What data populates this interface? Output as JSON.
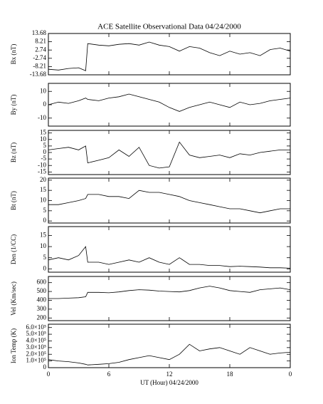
{
  "chart_data": [
    {
      "type": "line",
      "title": "ACE Satellite Observational Data   04/24/2000",
      "ylabel": "Bx (nT)",
      "xlim": [
        0,
        24
      ],
      "ylim": [
        -13.68,
        13.68
      ],
      "yticks": [
        13.68,
        8.21,
        2.74,
        -2.74,
        -8.21,
        -13.68
      ],
      "x": [
        0,
        1,
        2,
        3,
        3.7,
        3.9,
        5,
        6,
        7,
        8,
        9,
        10,
        11,
        12,
        13,
        14,
        15,
        16,
        17,
        18,
        19,
        20,
        21,
        22,
        23,
        24
      ],
      "series": [
        {
          "name": "Bx",
          "color": "#000000",
          "values": [
            -10,
            -10.5,
            -9.5,
            -9,
            -11,
            7,
            6,
            5.5,
            6.5,
            7,
            6,
            8,
            6,
            5,
            2,
            5,
            4,
            1,
            -1,
            2,
            0,
            1,
            -1,
            3,
            4,
            2
          ]
        }
      ]
    },
    {
      "type": "line",
      "ylabel": "By (nT)",
      "xlim": [
        0,
        24
      ],
      "ylim": [
        -16,
        16
      ],
      "yticks": [
        10,
        0,
        -10
      ],
      "x": [
        0,
        1,
        2,
        3,
        3.7,
        3.9,
        5,
        6,
        7,
        8,
        9,
        10,
        11,
        12,
        13,
        14,
        15,
        16,
        17,
        18,
        19,
        20,
        21,
        22,
        23,
        24
      ],
      "series": [
        {
          "name": "By",
          "color": "#000000",
          "values": [
            0,
            2,
            1,
            3,
            5,
            4,
            3,
            5,
            6,
            8,
            6,
            4,
            2,
            -2,
            -5,
            -2,
            0,
            2,
            0,
            -2,
            2,
            0,
            1,
            3,
            4,
            5
          ]
        }
      ]
    },
    {
      "type": "line",
      "ylabel": "Bz (nT)",
      "xlim": [
        0,
        24
      ],
      "ylim": [
        -17,
        17
      ],
      "yticks": [
        15,
        10,
        5,
        0,
        -5,
        -10,
        -15
      ],
      "x": [
        0,
        1,
        2,
        3,
        3.7,
        3.9,
        5,
        6,
        7,
        8,
        9,
        10,
        11,
        12,
        13,
        14,
        15,
        16,
        17,
        18,
        19,
        20,
        21,
        22,
        23,
        24
      ],
      "series": [
        {
          "name": "Bz",
          "color": "#000000",
          "values": [
            2,
            3,
            4,
            2,
            5,
            -8,
            -6,
            -4,
            2,
            -3,
            4,
            -10,
            -12,
            -11,
            8,
            -2,
            -4,
            -3,
            -2,
            -4,
            -1,
            -2,
            0,
            1,
            2,
            2
          ]
        }
      ]
    },
    {
      "type": "line",
      "ylabel": "Bt (nT)",
      "xlim": [
        0,
        24
      ],
      "ylim": [
        -1,
        21
      ],
      "yticks": [
        0,
        5,
        10,
        15,
        20
      ],
      "x": [
        0,
        1,
        2,
        3,
        3.7,
        3.9,
        5,
        6,
        7,
        8,
        9,
        10,
        11,
        12,
        13,
        14,
        15,
        16,
        17,
        18,
        19,
        20,
        21,
        22,
        23,
        24
      ],
      "series": [
        {
          "name": "Bt",
          "color": "#000000",
          "values": [
            8,
            8,
            9,
            10,
            11,
            13,
            13,
            12,
            12,
            11,
            15,
            14,
            14,
            13,
            12,
            10,
            9,
            8,
            7,
            6,
            6,
            5,
            4,
            5,
            6,
            6
          ]
        }
      ]
    },
    {
      "type": "line",
      "ylabel": "Den (1/CC)",
      "xlim": [
        0,
        24
      ],
      "ylim": [
        -1.5,
        19
      ],
      "yticks": [
        0,
        5,
        10,
        15
      ],
      "x": [
        0,
        1,
        2,
        3,
        3.7,
        3.9,
        5,
        6,
        7,
        8,
        9,
        10,
        11,
        12,
        13,
        14,
        15,
        16,
        17,
        18,
        19,
        20,
        21,
        22,
        23,
        24
      ],
      "series": [
        {
          "name": "Den",
          "color": "#000000",
          "values": [
            4,
            5,
            4,
            6,
            10,
            3,
            3,
            2,
            3,
            4,
            3,
            5,
            3,
            2,
            5,
            2,
            2,
            1.5,
            1.5,
            1,
            1.2,
            1,
            0.8,
            0.5,
            0.5,
            0.3
          ]
        }
      ]
    },
    {
      "type": "line",
      "ylabel": "Vel (Km/sec)",
      "xlim": [
        0,
        24
      ],
      "ylim": [
        170,
        670
      ],
      "yticks": [
        200,
        300,
        400,
        500,
        600
      ],
      "x": [
        0,
        1,
        2,
        3,
        3.7,
        3.9,
        5,
        6,
        7,
        8,
        9,
        10,
        11,
        12,
        13,
        14,
        15,
        16,
        17,
        18,
        19,
        20,
        21,
        22,
        23,
        24
      ],
      "series": [
        {
          "name": "Vel",
          "color": "#000000",
          "values": [
            420,
            420,
            425,
            430,
            440,
            490,
            490,
            485,
            495,
            510,
            520,
            515,
            505,
            500,
            495,
            510,
            540,
            560,
            540,
            510,
            500,
            490,
            520,
            530,
            540,
            520
          ]
        }
      ]
    },
    {
      "type": "line",
      "ylabel": "Ion Temp (K)",
      "xlabel": "UT (Hour)  04/24/2000",
      "xlim": [
        0,
        24
      ],
      "ylim": [
        0,
        650000
      ],
      "xticks": [
        0,
        6,
        12,
        18,
        {
          "value": 24,
          "label": "0"
        }
      ],
      "yticks": [
        0,
        {
          "value": 100000,
          "label": "1.0×10⁵"
        },
        {
          "value": 200000,
          "label": "2.0×10⁵"
        },
        {
          "value": 300000,
          "label": "3.0×10⁵"
        },
        {
          "value": 400000,
          "label": "4.0×10⁵"
        },
        {
          "value": 500000,
          "label": "5.0×10⁵"
        },
        {
          "value": 600000,
          "label": "6.0×10⁵"
        }
      ],
      "x": [
        0,
        1,
        2,
        3,
        3.7,
        3.9,
        5,
        6,
        7,
        8,
        9,
        10,
        11,
        12,
        13,
        14,
        15,
        16,
        17,
        18,
        19,
        20,
        21,
        22,
        23,
        24
      ],
      "series": [
        {
          "name": "Ion Temp",
          "color": "#000000",
          "values": [
            120000,
            100000,
            90000,
            70000,
            50000,
            40000,
            50000,
            60000,
            80000,
            120000,
            150000,
            180000,
            150000,
            120000,
            200000,
            350000,
            250000,
            280000,
            300000,
            250000,
            200000,
            300000,
            250000,
            200000,
            220000,
            230000
          ]
        }
      ]
    }
  ]
}
